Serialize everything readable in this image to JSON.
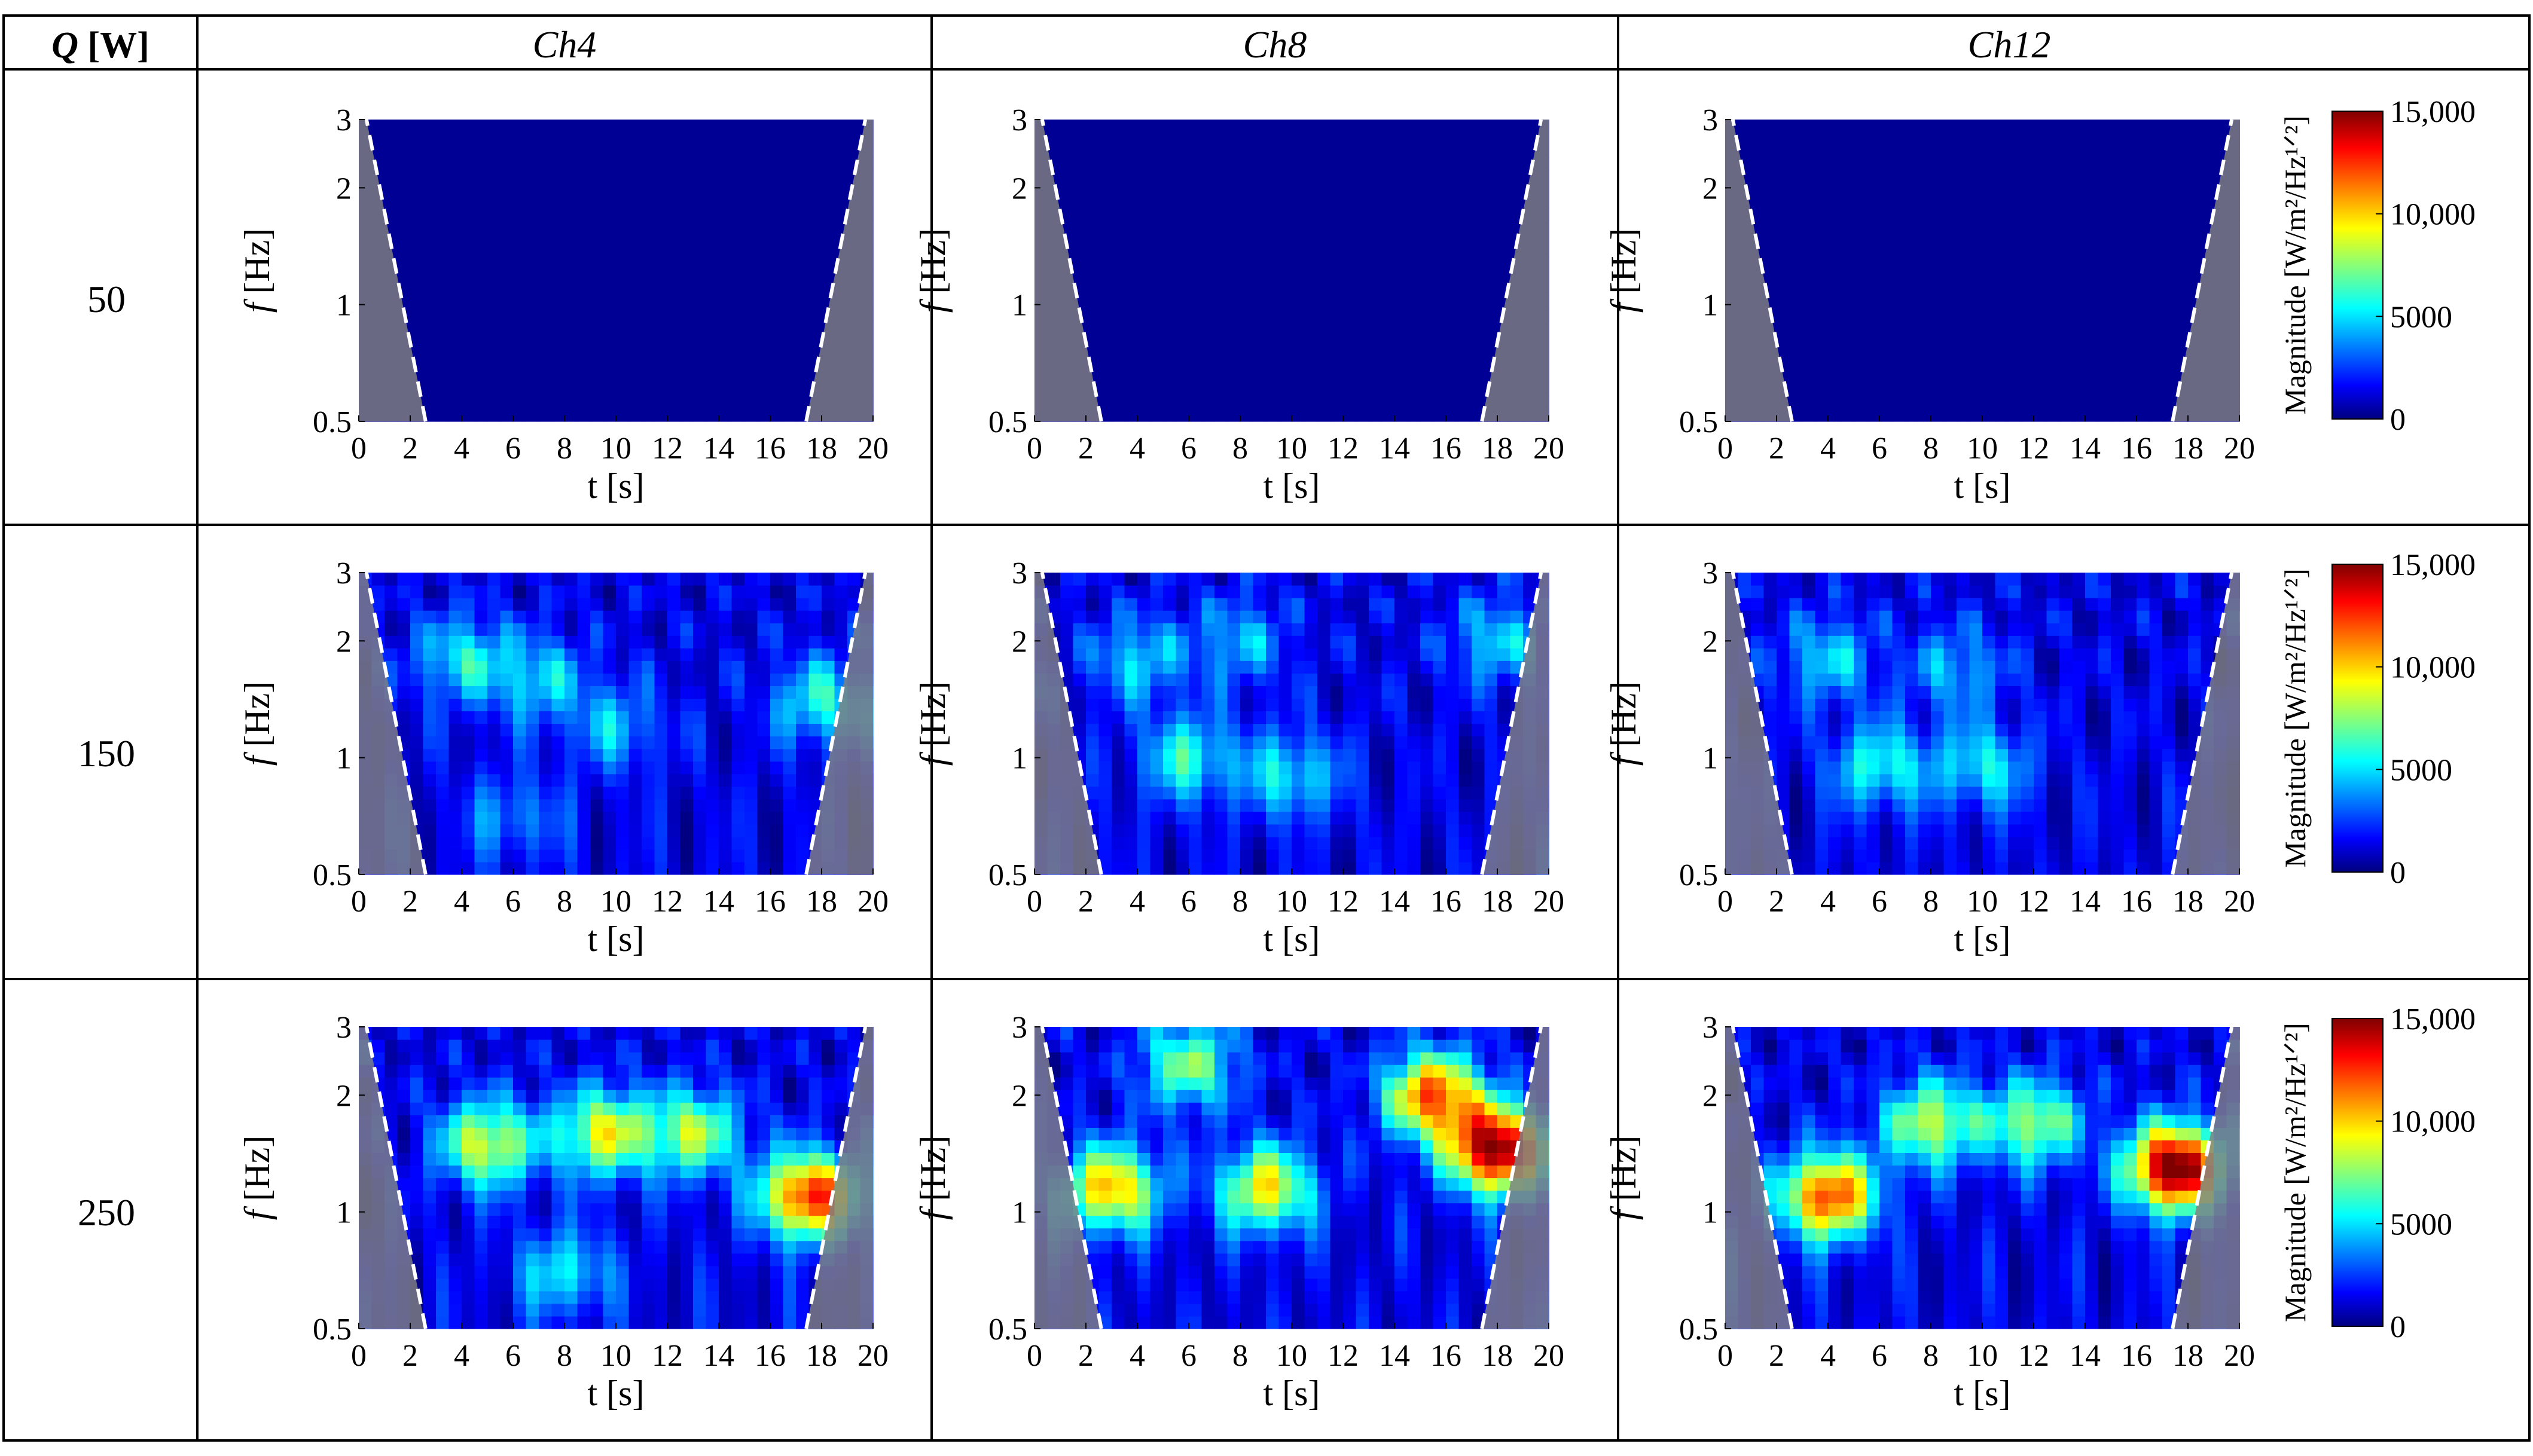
{
  "table": {
    "header_q": "Q",
    "header_q_unit": " [W]",
    "columns": [
      "Ch4",
      "Ch8",
      "Ch12"
    ],
    "rows": [
      "50",
      "150",
      "250"
    ]
  },
  "colorbar": {
    "label": "Magnitude [W/m²/Hz¹ᐟ²]",
    "ticks": [
      "15,000",
      "10,000",
      "5000",
      "0"
    ],
    "colormap": "jet",
    "range": [
      0,
      15000
    ]
  },
  "axes": {
    "xlabel": "t [s]",
    "ylabel": "f [Hz]",
    "xticks": [
      "0",
      "2",
      "4",
      "6",
      "8",
      "10",
      "12",
      "14",
      "16",
      "18",
      "20"
    ],
    "yticks": [
      "3",
      "2",
      "1",
      "0.5"
    ],
    "xlim": [
      0,
      20
    ],
    "ylim": [
      0.5,
      3
    ],
    "yscale": "log",
    "cone_of_influence": "white dashed line, grey shaded outside"
  },
  "chart_data": [
    {
      "type": "heatmap",
      "row": "50",
      "column": "Ch4",
      "x": [
        0,
        20
      ],
      "y": [
        0.5,
        3
      ],
      "zlim": [
        0,
        15000
      ],
      "hotspots": []
    },
    {
      "type": "heatmap",
      "row": "50",
      "column": "Ch8",
      "x": [
        0,
        20
      ],
      "y": [
        0.5,
        3
      ],
      "zlim": [
        0,
        15000
      ],
      "hotspots": []
    },
    {
      "type": "heatmap",
      "row": "50",
      "column": "Ch12",
      "x": [
        0,
        20
      ],
      "y": [
        0.5,
        3
      ],
      "zlim": [
        0,
        15000
      ],
      "hotspots": []
    },
    {
      "type": "heatmap",
      "row": "150",
      "column": "Ch4",
      "x": [
        0,
        20
      ],
      "y": [
        0.5,
        3
      ],
      "zlim": [
        0,
        15000
      ],
      "hotspots": [
        {
          "t": 4,
          "f": 1.8,
          "value": 4000
        },
        {
          "t": 7,
          "f": 1.6,
          "value": 3500
        },
        {
          "t": 10,
          "f": 1.2,
          "value": 3000
        },
        {
          "t": 18,
          "f": 1.4,
          "value": 4500
        },
        {
          "t": 6,
          "f": 0.7,
          "value": 2500
        }
      ]
    },
    {
      "type": "heatmap",
      "row": "150",
      "column": "Ch8",
      "x": [
        0,
        20
      ],
      "y": [
        0.5,
        3
      ],
      "zlim": [
        0,
        15000
      ],
      "hotspots": [
        {
          "t": 6,
          "f": 1.0,
          "value": 4500
        },
        {
          "t": 10,
          "f": 0.9,
          "value": 4000
        },
        {
          "t": 4,
          "f": 1.8,
          "value": 3500
        },
        {
          "t": 8,
          "f": 2.0,
          "value": 3000
        },
        {
          "t": 18,
          "f": 2.0,
          "value": 3500
        }
      ]
    },
    {
      "type": "heatmap",
      "row": "150",
      "column": "Ch12",
      "x": [
        0,
        20
      ],
      "y": [
        0.5,
        3
      ],
      "zlim": [
        0,
        15000
      ],
      "hotspots": [
        {
          "t": 6,
          "f": 0.95,
          "value": 4500
        },
        {
          "t": 10,
          "f": 0.95,
          "value": 4000
        },
        {
          "t": 4,
          "f": 1.8,
          "value": 3500
        },
        {
          "t": 9,
          "f": 1.7,
          "value": 3000
        }
      ]
    },
    {
      "type": "heatmap",
      "row": "250",
      "column": "Ch4",
      "x": [
        0,
        20
      ],
      "y": [
        0.5,
        3
      ],
      "zlim": [
        0,
        15000
      ],
      "hotspots": [
        {
          "t": 17.5,
          "f": 1.1,
          "value": 11500
        },
        {
          "t": 5,
          "f": 1.5,
          "value": 7500
        },
        {
          "t": 9.5,
          "f": 1.6,
          "value": 7500
        },
        {
          "t": 13,
          "f": 1.6,
          "value": 6500
        },
        {
          "t": 8,
          "f": 0.7,
          "value": 4000
        }
      ]
    },
    {
      "type": "heatmap",
      "row": "250",
      "column": "Ch8",
      "x": [
        0,
        20
      ],
      "y": [
        0.5,
        3
      ],
      "zlim": [
        0,
        15000
      ],
      "hotspots": [
        {
          "t": 18,
          "f": 1.45,
          "value": 14000
        },
        {
          "t": 15.5,
          "f": 2.0,
          "value": 10500
        },
        {
          "t": 3,
          "f": 1.15,
          "value": 9000
        },
        {
          "t": 9,
          "f": 1.15,
          "value": 8000
        },
        {
          "t": 6,
          "f": 2.4,
          "value": 6000
        }
      ]
    },
    {
      "type": "heatmap",
      "row": "250",
      "column": "Ch12",
      "x": [
        0,
        20
      ],
      "y": [
        0.5,
        3
      ],
      "zlim": [
        0,
        15000
      ],
      "hotspots": [
        {
          "t": 17.5,
          "f": 1.3,
          "value": 14500
        },
        {
          "t": 4,
          "f": 1.1,
          "value": 11000
        },
        {
          "t": 8,
          "f": 1.7,
          "value": 7000
        },
        {
          "t": 12,
          "f": 1.7,
          "value": 6500
        }
      ]
    }
  ]
}
